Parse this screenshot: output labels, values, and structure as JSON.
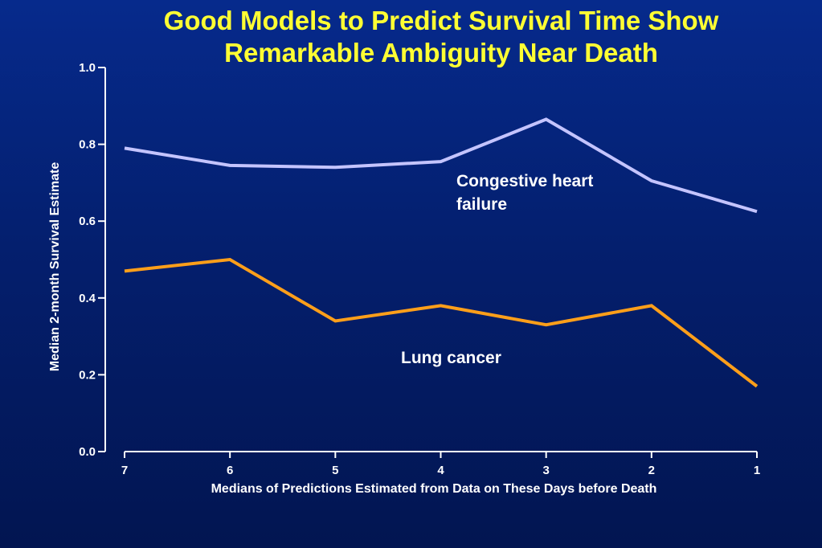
{
  "title": {
    "line1": "Good Models to Predict Survival Time Show",
    "line2": "Remarkable Ambiguity Near Death"
  },
  "colors": {
    "background": "#041f6e",
    "title": "#ffff33",
    "axis": "#ffffff",
    "heart_failure_line": "#c4c4ff",
    "lung_cancer_line": "#ff9f1a"
  },
  "chart_data": {
    "type": "line",
    "title": "Good Models to Predict Survival Time Show Remarkable Ambiguity Near Death",
    "xlabel": "Medians of Predictions Estimated from Data on These Days before Death",
    "ylabel": "Median 2-month Survival Estimate",
    "x": [
      "7",
      "6",
      "5",
      "4",
      "3",
      "2",
      "1"
    ],
    "ylim": [
      0,
      1
    ],
    "yticks": [
      "0.0",
      "0.2",
      "0.4",
      "0.6",
      "0.8",
      "1.0"
    ],
    "grid": false,
    "series": [
      {
        "name": "Congestive heart failure",
        "label_lines": [
          "Congestive heart",
          "failure"
        ],
        "color": "#c4c4ff",
        "values": [
          0.79,
          0.745,
          0.74,
          0.755,
          0.865,
          0.705,
          0.625
        ]
      },
      {
        "name": "Lung cancer",
        "label_lines": [
          "Lung cancer"
        ],
        "color": "#ff9f1a",
        "values": [
          0.47,
          0.5,
          0.34,
          0.38,
          0.33,
          0.38,
          0.17
        ]
      }
    ]
  }
}
